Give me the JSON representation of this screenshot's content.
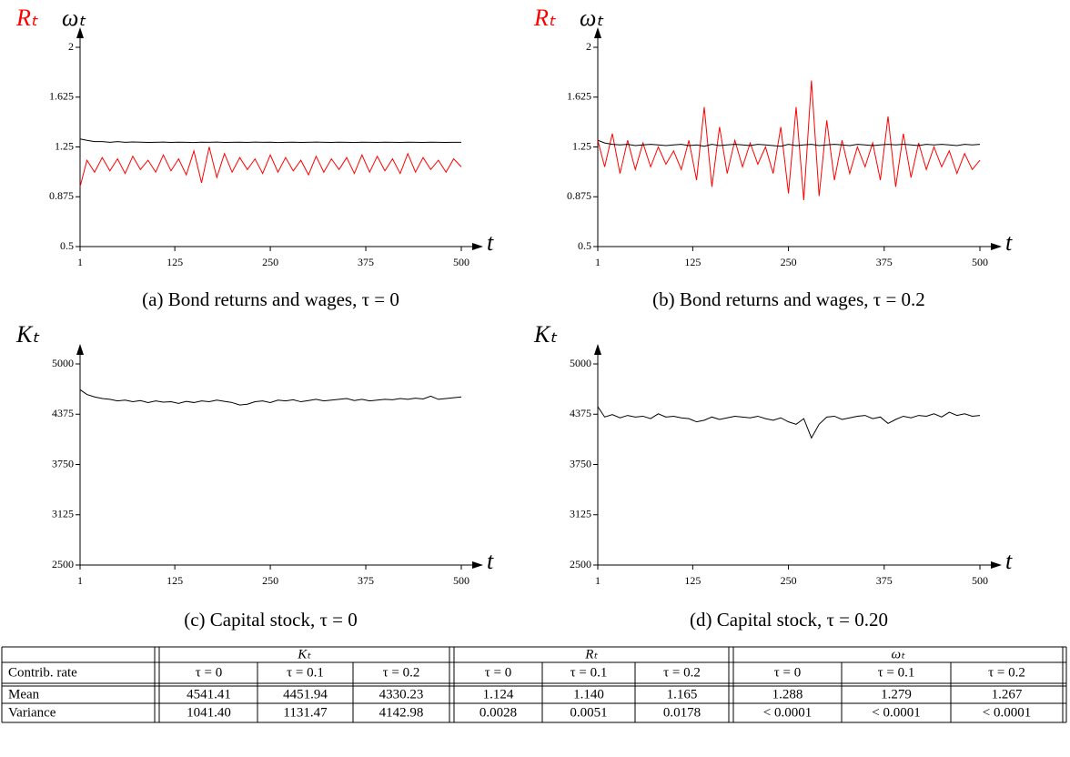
{
  "chart_data": [
    {
      "type": "line",
      "caption": "(a) Bond returns and wages, τ = 0",
      "xlabel": "t",
      "x": [
        1,
        10,
        20,
        30,
        40,
        50,
        60,
        70,
        80,
        90,
        100,
        110,
        120,
        130,
        140,
        150,
        160,
        170,
        180,
        190,
        200,
        210,
        220,
        230,
        240,
        250,
        260,
        270,
        280,
        290,
        300,
        310,
        320,
        330,
        340,
        350,
        360,
        370,
        380,
        390,
        400,
        410,
        420,
        430,
        440,
        450,
        460,
        470,
        480,
        490,
        500
      ],
      "xlim": [
        1,
        500
      ],
      "xticks": [
        1,
        125,
        250,
        375,
        500
      ],
      "ylim": [
        0.5,
        2
      ],
      "yticks": [
        0.5,
        0.875,
        1.25,
        1.625,
        2
      ],
      "series": [
        {
          "name": "Rₜ",
          "color": "#ff0000",
          "values": [
            0.95,
            1.15,
            1.06,
            1.17,
            1.07,
            1.16,
            1.05,
            1.18,
            1.08,
            1.15,
            1.06,
            1.19,
            1.07,
            1.16,
            1.04,
            1.22,
            0.98,
            1.25,
            1.02,
            1.2,
            1.06,
            1.17,
            1.08,
            1.16,
            1.05,
            1.19,
            1.06,
            1.17,
            1.07,
            1.15,
            1.04,
            1.18,
            1.06,
            1.16,
            1.08,
            1.17,
            1.05,
            1.19,
            1.06,
            1.18,
            1.07,
            1.16,
            1.05,
            1.2,
            1.06,
            1.17,
            1.08,
            1.15,
            1.06,
            1.16,
            1.1
          ]
        },
        {
          "name": "ωₜ",
          "color": "#000000",
          "values": [
            1.31,
            1.3,
            1.29,
            1.29,
            1.285,
            1.29,
            1.285,
            1.288,
            1.286,
            1.284,
            1.285,
            1.287,
            1.284,
            1.286,
            1.285,
            1.283,
            1.286,
            1.285,
            1.287,
            1.284,
            1.285,
            1.286,
            1.284,
            1.287,
            1.285,
            1.286,
            1.283,
            1.285,
            1.286,
            1.284,
            1.285,
            1.287,
            1.285,
            1.284,
            1.286,
            1.285,
            1.283,
            1.286,
            1.285,
            1.284,
            1.286,
            1.285,
            1.284,
            1.286,
            1.285,
            1.284,
            1.286,
            1.285,
            1.284,
            1.285,
            1.285
          ]
        }
      ]
    },
    {
      "type": "line",
      "caption": "(b) Bond returns and wages, τ = 0.2",
      "xlabel": "t",
      "x": [
        1,
        10,
        20,
        30,
        40,
        50,
        60,
        70,
        80,
        90,
        100,
        110,
        120,
        130,
        140,
        150,
        160,
        170,
        180,
        190,
        200,
        210,
        220,
        230,
        240,
        250,
        260,
        270,
        280,
        290,
        300,
        310,
        320,
        330,
        340,
        350,
        360,
        370,
        380,
        390,
        400,
        410,
        420,
        430,
        440,
        450,
        460,
        470,
        480,
        490,
        500
      ],
      "xlim": [
        1,
        500
      ],
      "xticks": [
        1,
        125,
        250,
        375,
        500
      ],
      "ylim": [
        0.5,
        2
      ],
      "yticks": [
        0.5,
        0.875,
        1.25,
        1.625,
        2
      ],
      "series": [
        {
          "name": "Rₜ",
          "color": "#ff0000",
          "values": [
            1.3,
            1.1,
            1.35,
            1.05,
            1.3,
            1.08,
            1.28,
            1.1,
            1.25,
            1.12,
            1.22,
            1.08,
            1.3,
            1.0,
            1.55,
            0.95,
            1.4,
            1.05,
            1.3,
            1.1,
            1.28,
            1.12,
            1.25,
            1.05,
            1.4,
            0.9,
            1.55,
            0.85,
            1.75,
            0.88,
            1.45,
            1.0,
            1.3,
            1.05,
            1.25,
            1.1,
            1.28,
            1.0,
            1.48,
            0.95,
            1.35,
            1.02,
            1.28,
            1.08,
            1.25,
            1.1,
            1.22,
            1.05,
            1.2,
            1.08,
            1.15
          ]
        },
        {
          "name": "ωₜ",
          "color": "#000000",
          "values": [
            1.3,
            1.28,
            1.27,
            1.265,
            1.27,
            1.26,
            1.265,
            1.27,
            1.265,
            1.26,
            1.265,
            1.27,
            1.26,
            1.265,
            1.255,
            1.27,
            1.26,
            1.265,
            1.27,
            1.265,
            1.26,
            1.27,
            1.265,
            1.26,
            1.255,
            1.27,
            1.26,
            1.265,
            1.27,
            1.26,
            1.265,
            1.27,
            1.265,
            1.26,
            1.27,
            1.265,
            1.26,
            1.265,
            1.27,
            1.265,
            1.27,
            1.265,
            1.26,
            1.27,
            1.265,
            1.27,
            1.265,
            1.26,
            1.27,
            1.265,
            1.27
          ]
        }
      ]
    },
    {
      "type": "line",
      "caption": "(c) Capital stock, τ = 0",
      "xlabel": "t",
      "x": [
        1,
        10,
        20,
        30,
        40,
        50,
        60,
        70,
        80,
        90,
        100,
        110,
        120,
        130,
        140,
        150,
        160,
        170,
        180,
        190,
        200,
        210,
        220,
        230,
        240,
        250,
        260,
        270,
        280,
        290,
        300,
        310,
        320,
        330,
        340,
        350,
        360,
        370,
        380,
        390,
        400,
        410,
        420,
        430,
        440,
        450,
        460,
        470,
        480,
        490,
        500
      ],
      "xlim": [
        1,
        500
      ],
      "xticks": [
        1,
        125,
        250,
        375,
        500
      ],
      "ylim": [
        2500,
        5000
      ],
      "yticks": [
        2500,
        3125,
        3750,
        4375,
        5000
      ],
      "series": [
        {
          "name": "Kₜ",
          "color": "#000000",
          "values": [
            4680,
            4620,
            4590,
            4570,
            4560,
            4540,
            4550,
            4530,
            4545,
            4520,
            4540,
            4525,
            4530,
            4510,
            4535,
            4520,
            4540,
            4530,
            4550,
            4535,
            4520,
            4490,
            4500,
            4530,
            4540,
            4520,
            4550,
            4540,
            4555,
            4530,
            4545,
            4560,
            4540,
            4550,
            4560,
            4570,
            4545,
            4560,
            4540,
            4550,
            4560,
            4555,
            4570,
            4560,
            4575,
            4565,
            4600,
            4560,
            4570,
            4580,
            4590
          ]
        }
      ]
    },
    {
      "type": "line",
      "caption": "(d) Capital stock, τ = 0.20",
      "xlabel": "t",
      "x": [
        1,
        10,
        20,
        30,
        40,
        50,
        60,
        70,
        80,
        90,
        100,
        110,
        120,
        130,
        140,
        150,
        160,
        170,
        180,
        190,
        200,
        210,
        220,
        230,
        240,
        250,
        260,
        270,
        280,
        290,
        300,
        310,
        320,
        330,
        340,
        350,
        360,
        370,
        380,
        390,
        400,
        410,
        420,
        430,
        440,
        450,
        460,
        470,
        480,
        490,
        500
      ],
      "xlim": [
        1,
        500
      ],
      "xticks": [
        1,
        125,
        250,
        375,
        500
      ],
      "ylim": [
        2500,
        5000
      ],
      "yticks": [
        2500,
        3125,
        3750,
        4375,
        5000
      ],
      "series": [
        {
          "name": "Kₜ",
          "color": "#000000",
          "values": [
            4470,
            4340,
            4370,
            4330,
            4360,
            4340,
            4350,
            4320,
            4380,
            4340,
            4350,
            4330,
            4320,
            4280,
            4300,
            4340,
            4310,
            4330,
            4350,
            4340,
            4330,
            4350,
            4320,
            4300,
            4330,
            4280,
            4250,
            4320,
            4080,
            4250,
            4340,
            4350,
            4310,
            4330,
            4350,
            4360,
            4320,
            4340,
            4260,
            4310,
            4350,
            4330,
            4360,
            4350,
            4380,
            4340,
            4400,
            4360,
            4380,
            4350,
            4360
          ]
        }
      ]
    }
  ],
  "table": {
    "groups": [
      "Kₜ",
      "Rₜ",
      "ωₜ"
    ],
    "columns": [
      "Contrib. rate",
      "τ = 0",
      "τ = 0.1",
      "τ = 0.2",
      "τ = 0",
      "τ = 0.1",
      "τ = 0.2",
      "τ = 0",
      "τ = 0.1",
      "τ = 0.2"
    ],
    "rows": [
      [
        "Mean",
        "4541.41",
        "4451.94",
        "4330.23",
        "1.124",
        "1.140",
        "1.165",
        "1.288",
        "1.279",
        "1.267"
      ],
      [
        "Variance",
        "1041.40",
        "1131.47",
        "4142.98",
        "0.0028",
        "0.0051",
        "0.0178",
        "< 0.0001",
        "< 0.0001",
        "< 0.0001"
      ]
    ]
  }
}
